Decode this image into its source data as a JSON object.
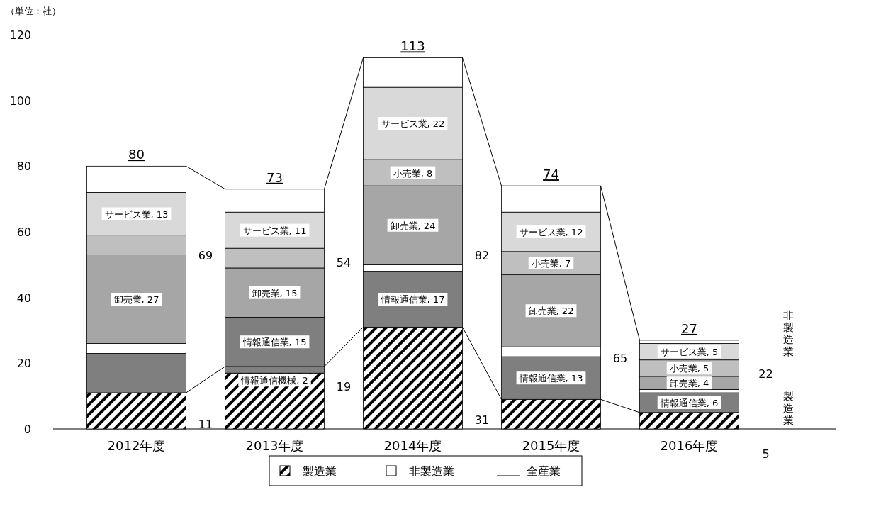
{
  "chart_data": {
    "type": "bar",
    "stacked": true,
    "categories": [
      "2012年度",
      "2013年度",
      "2014年度",
      "2015年度",
      "2016年度"
    ],
    "series": [
      {
        "name": "製造業",
        "color": "#000000",
        "values": [
          11,
          17,
          31,
          9,
          5
        ]
      },
      {
        "color": "#808080",
        "values": [
          null,
          2,
          null,
          null,
          null
        ],
        "value_labels": [
          null,
          "情報通信機械, 2",
          null,
          null,
          null
        ]
      },
      {
        "color": "#7f7f7f",
        "values": [
          12,
          15,
          17,
          13,
          6
        ],
        "value_labels": [
          null,
          "情報通信業, 15",
          "情報通信業, 17",
          "情報通信業, 13",
          "情報通信業, 6"
        ]
      },
      {
        "name": "非製造業",
        "color": "#ffffff",
        "values": [
          3,
          null,
          2,
          3,
          1
        ]
      },
      {
        "color": "#a6a6a6",
        "values": [
          27,
          15,
          24,
          22,
          4
        ],
        "value_labels": [
          "卸売業, 27",
          "卸売業, 15",
          "卸売業, 24",
          "卸売業, 22",
          "卸売業, 4"
        ]
      },
      {
        "color": "#bfbfbf",
        "values": [
          6,
          6,
          8,
          7,
          5
        ],
        "value_labels": [
          null,
          null,
          "小売業, 8",
          "小売業, 7",
          "小売業, 5"
        ]
      },
      {
        "color": "#d9d9d9",
        "values": [
          13,
          11,
          22,
          12,
          5
        ],
        "value_labels": [
          "サービス業, 13",
          "サービス業, 11",
          "サービス業, 22",
          "サービス業, 12",
          "サービス業, 5"
        ]
      },
      {
        "color": "#ffffff",
        "values": [
          8,
          7,
          9,
          8,
          1
        ]
      }
    ],
    "totals": [
      "80",
      "73",
      "113",
      "74",
      "27"
    ],
    "ylim": [
      0,
      120
    ],
    "yticks": [
      0,
      20,
      40,
      60,
      80,
      100,
      120
    ],
    "legend": "bottom",
    "annotations": [
      "（単位：社）",
      "全産業",
      "69",
      "11",
      "54",
      "19",
      "82",
      "31",
      "65",
      "非製造業",
      "22",
      "製造業",
      "5"
    ]
  }
}
